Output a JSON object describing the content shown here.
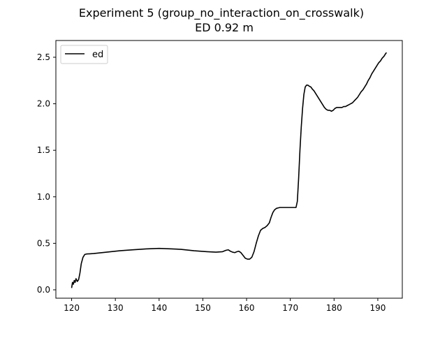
{
  "figure": {
    "title_line1": "Experiment 5 (group_no_interaction_on_crosswalk)",
    "title_line2": "ED 0.92 m"
  },
  "chart_data": {
    "type": "line",
    "title": "Experiment 5 (group_no_interaction_on_crosswalk)\nED 0.92 m",
    "xlabel": "",
    "ylabel": "",
    "xlim": [
      116.4,
      195.6
    ],
    "ylim": [
      -0.09,
      2.68
    ],
    "xticks": [
      120,
      130,
      140,
      150,
      160,
      170,
      180,
      190
    ],
    "yticks": [
      0.0,
      0.5,
      1.0,
      1.5,
      2.0,
      2.5
    ],
    "xtick_labels": [
      "120",
      "130",
      "140",
      "150",
      "160",
      "170",
      "180",
      "190"
    ],
    "ytick_labels": [
      "0.0",
      "0.5",
      "1.0",
      "1.5",
      "2.0",
      "2.5"
    ],
    "grid": false,
    "legend": {
      "position": "top-left",
      "entries": [
        "ed"
      ]
    },
    "series": [
      {
        "name": "ed",
        "color": "#000000",
        "x": [
          120.0,
          120.2,
          120.4,
          120.6,
          120.8,
          121.0,
          121.3,
          121.6,
          121.9,
          122.2,
          122.6,
          123.0,
          123.4,
          125,
          128,
          131,
          134,
          137,
          140,
          143,
          145,
          148,
          151,
          153,
          154.5,
          155.3,
          155.8,
          156.3,
          156.8,
          157.3,
          157.8,
          158.2,
          158.7,
          159.2,
          159.7,
          160.2,
          160.7,
          161.2,
          161.7,
          162.2,
          162.7,
          163.2,
          163.7,
          164.2,
          164.7,
          165.2,
          165.6,
          166.0,
          166.4,
          166.8,
          167.2,
          167.6,
          168.0,
          168.5,
          169.0,
          169.5,
          170.0,
          170.5,
          171.0,
          171.3,
          171.6,
          171.9,
          172.2,
          172.5,
          172.8,
          173.1,
          173.4,
          173.7,
          174.0,
          174.3,
          174.7,
          175.0,
          175.4,
          175.8,
          176.2,
          176.6,
          177.0,
          177.4,
          177.8,
          178.2,
          178.6,
          179.0,
          179.4,
          179.8,
          180.2,
          180.6,
          181.0,
          181.4,
          181.8,
          182.2,
          182.6,
          183.0,
          183.4,
          183.8,
          184.2,
          184.6,
          185.0,
          185.4,
          185.8,
          186.2,
          186.6,
          187.0,
          187.4,
          187.8,
          188.2,
          188.6,
          189.0,
          189.4,
          189.8,
          190.2,
          190.6,
          191.0,
          191.4,
          191.8,
          192.0
        ],
        "y": [
          0.02,
          0.08,
          0.06,
          0.1,
          0.08,
          0.12,
          0.09,
          0.11,
          0.18,
          0.28,
          0.35,
          0.38,
          0.385,
          0.39,
          0.405,
          0.42,
          0.43,
          0.44,
          0.445,
          0.44,
          0.435,
          0.42,
          0.41,
          0.405,
          0.41,
          0.425,
          0.43,
          0.415,
          0.405,
          0.4,
          0.41,
          0.415,
          0.4,
          0.37,
          0.34,
          0.33,
          0.33,
          0.35,
          0.41,
          0.5,
          0.58,
          0.64,
          0.66,
          0.67,
          0.69,
          0.72,
          0.78,
          0.83,
          0.86,
          0.875,
          0.88,
          0.885,
          0.885,
          0.885,
          0.885,
          0.885,
          0.885,
          0.885,
          0.885,
          0.885,
          0.95,
          1.2,
          1.5,
          1.75,
          1.95,
          2.1,
          2.18,
          2.2,
          2.2,
          2.19,
          2.18,
          2.16,
          2.14,
          2.11,
          2.08,
          2.05,
          2.02,
          1.99,
          1.96,
          1.94,
          1.93,
          1.93,
          1.92,
          1.93,
          1.95,
          1.96,
          1.96,
          1.96,
          1.96,
          1.97,
          1.97,
          1.98,
          1.99,
          2.0,
          2.01,
          2.03,
          2.05,
          2.07,
          2.1,
          2.13,
          2.15,
          2.18,
          2.21,
          2.25,
          2.28,
          2.32,
          2.35,
          2.38,
          2.41,
          2.44,
          2.46,
          2.49,
          2.51,
          2.54,
          2.55
        ]
      }
    ]
  }
}
